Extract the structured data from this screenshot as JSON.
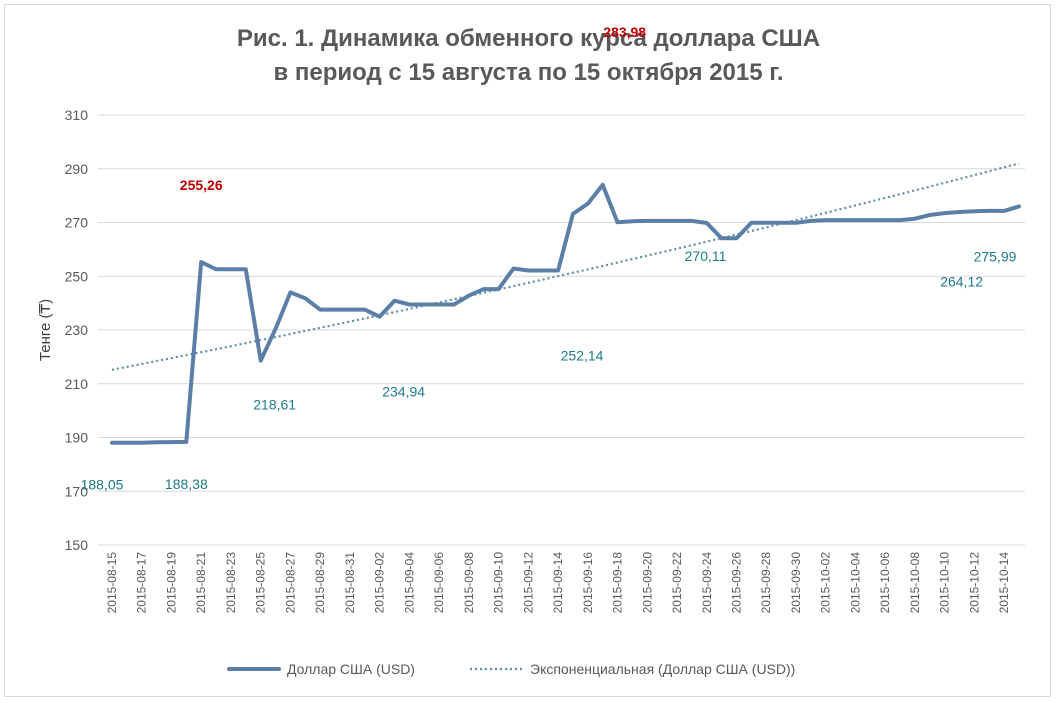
{
  "chart_data": {
    "type": "line",
    "title_line1": "Рис. 1. Динамика обменного курса доллара США",
    "title_line2": "в период с 15 августа по 15 октября 2015 г.",
    "ylabel": "Тенге (₸)",
    "xlabel": "",
    "ylim": [
      150,
      310
    ],
    "yticks": [
      150,
      170,
      190,
      210,
      230,
      250,
      270,
      290,
      310
    ],
    "grid": true,
    "legend_position": "bottom",
    "colors": {
      "series": "#5b7fa6",
      "trend": "#5b8fa6",
      "annotation_red": "#c00000",
      "annotation": "#1f7a8c"
    },
    "x": [
      "2015-08-15",
      "2015-08-16",
      "2015-08-17",
      "2015-08-18",
      "2015-08-19",
      "2015-08-20",
      "2015-08-21",
      "2015-08-22",
      "2015-08-23",
      "2015-08-24",
      "2015-08-25",
      "2015-08-26",
      "2015-08-27",
      "2015-08-28",
      "2015-08-29",
      "2015-08-30",
      "2015-08-31",
      "2015-09-01",
      "2015-09-02",
      "2015-09-03",
      "2015-09-04",
      "2015-09-05",
      "2015-09-06",
      "2015-09-07",
      "2015-09-08",
      "2015-09-09",
      "2015-09-10",
      "2015-09-11",
      "2015-09-12",
      "2015-09-13",
      "2015-09-14",
      "2015-09-15",
      "2015-09-16",
      "2015-09-17",
      "2015-09-18",
      "2015-09-19",
      "2015-09-20",
      "2015-09-21",
      "2015-09-22",
      "2015-09-23",
      "2015-09-24",
      "2015-09-25",
      "2015-09-26",
      "2015-09-27",
      "2015-09-28",
      "2015-09-29",
      "2015-09-30",
      "2015-10-01",
      "2015-10-02",
      "2015-10-03",
      "2015-10-04",
      "2015-10-05",
      "2015-10-06",
      "2015-10-07",
      "2015-10-08",
      "2015-10-09",
      "2015-10-10",
      "2015-10-11",
      "2015-10-12",
      "2015-10-13",
      "2015-10-14",
      "2015-10-15"
    ],
    "x_tick_labels": [
      "2015-08-15",
      "2015-08-17",
      "2015-08-19",
      "2015-08-21",
      "2015-08-23",
      "2015-08-25",
      "2015-08-27",
      "2015-08-29",
      "2015-08-31",
      "2015-09-02",
      "2015-09-04",
      "2015-09-06",
      "2015-09-08",
      "2015-09-10",
      "2015-09-12",
      "2015-09-14",
      "2015-09-16",
      "2015-09-18",
      "2015-09-20",
      "2015-09-22",
      "2015-09-24",
      "2015-09-26",
      "2015-09-28",
      "2015-09-30",
      "2015-10-02",
      "2015-10-04",
      "2015-10-06",
      "2015-10-08",
      "2015-10-10",
      "2015-10-12",
      "2015-10-14"
    ],
    "series": [
      {
        "name": "Доллар США (USD)",
        "values": [
          188.05,
          188.05,
          188.05,
          188.2,
          188.3,
          188.38,
          255.26,
          252.6,
          252.6,
          252.6,
          218.61,
          230.5,
          244.0,
          241.8,
          237.6,
          237.6,
          237.6,
          237.6,
          234.94,
          240.9,
          239.5,
          239.5,
          239.5,
          239.5,
          242.8,
          245.2,
          245.2,
          252.9,
          252.14,
          252.14,
          252.14,
          273.2,
          277.0,
          283.98,
          270.11,
          270.5,
          270.6,
          270.6,
          270.6,
          270.6,
          269.8,
          264.12,
          264.12,
          269.9,
          269.9,
          269.9,
          269.9,
          270.6,
          270.9,
          270.9,
          270.9,
          270.9,
          270.9,
          270.9,
          271.4,
          272.8,
          273.5,
          273.9,
          274.2,
          274.3,
          274.3,
          275.99
        ]
      },
      {
        "name": "Экспоненциальная (Доллар США (USD))",
        "trend": "exponential",
        "start": 215.2,
        "end": 292.0
      }
    ],
    "annotations": [
      {
        "text": "255,26",
        "x": "2015-08-21",
        "y": 255.26,
        "style": "red"
      },
      {
        "text": "283,98",
        "x": "2015-09-17",
        "y": 283.98,
        "style": "red"
      },
      {
        "text": "188,05",
        "x": "2015-08-15",
        "y": 188.05,
        "style": "plain"
      },
      {
        "text": "188,38",
        "x": "2015-08-20",
        "y": 188.38,
        "style": "plain"
      },
      {
        "text": "218,61",
        "x": "2015-08-25",
        "y": 218.61,
        "style": "plain"
      },
      {
        "text": "234,94",
        "x": "2015-09-02",
        "y": 234.94,
        "style": "plain"
      },
      {
        "text": "252,14",
        "x": "2015-09-14",
        "y": 252.14,
        "style": "plain"
      },
      {
        "text": "270,11",
        "x": "2015-09-18",
        "y": 270.11,
        "style": "plain"
      },
      {
        "text": "264,12",
        "x": "2015-09-25",
        "y": 264.12,
        "style": "plain"
      },
      {
        "text": "275,99",
        "x": "2015-10-15",
        "y": 275.99,
        "style": "plain"
      }
    ]
  }
}
